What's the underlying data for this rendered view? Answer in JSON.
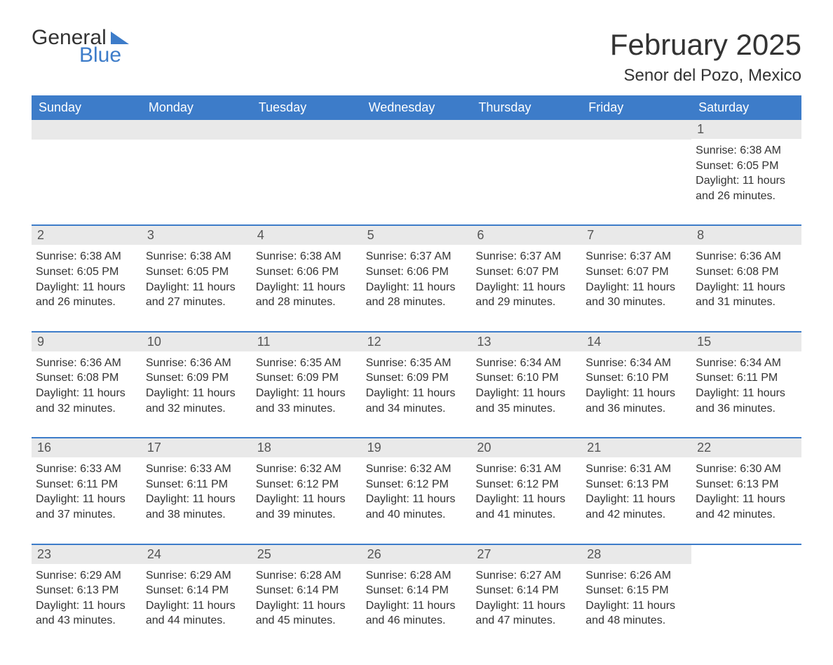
{
  "logo": {
    "general": "General",
    "blue": "Blue"
  },
  "title": "February 2025",
  "location": "Senor del Pozo, Mexico",
  "colors": {
    "header_bg": "#3d7cc9",
    "daybar_bg": "#e9e9e9",
    "text": "#333333",
    "background": "#ffffff"
  },
  "weekdays": [
    "Sunday",
    "Monday",
    "Tuesday",
    "Wednesday",
    "Thursday",
    "Friday",
    "Saturday"
  ],
  "weeks": [
    [
      null,
      null,
      null,
      null,
      null,
      null,
      {
        "d": "1",
        "sr": "Sunrise: 6:38 AM",
        "ss": "Sunset: 6:05 PM",
        "dl": "Daylight: 11 hours and 26 minutes."
      }
    ],
    [
      {
        "d": "2",
        "sr": "Sunrise: 6:38 AM",
        "ss": "Sunset: 6:05 PM",
        "dl": "Daylight: 11 hours and 26 minutes."
      },
      {
        "d": "3",
        "sr": "Sunrise: 6:38 AM",
        "ss": "Sunset: 6:05 PM",
        "dl": "Daylight: 11 hours and 27 minutes."
      },
      {
        "d": "4",
        "sr": "Sunrise: 6:38 AM",
        "ss": "Sunset: 6:06 PM",
        "dl": "Daylight: 11 hours and 28 minutes."
      },
      {
        "d": "5",
        "sr": "Sunrise: 6:37 AM",
        "ss": "Sunset: 6:06 PM",
        "dl": "Daylight: 11 hours and 28 minutes."
      },
      {
        "d": "6",
        "sr": "Sunrise: 6:37 AM",
        "ss": "Sunset: 6:07 PM",
        "dl": "Daylight: 11 hours and 29 minutes."
      },
      {
        "d": "7",
        "sr": "Sunrise: 6:37 AM",
        "ss": "Sunset: 6:07 PM",
        "dl": "Daylight: 11 hours and 30 minutes."
      },
      {
        "d": "8",
        "sr": "Sunrise: 6:36 AM",
        "ss": "Sunset: 6:08 PM",
        "dl": "Daylight: 11 hours and 31 minutes."
      }
    ],
    [
      {
        "d": "9",
        "sr": "Sunrise: 6:36 AM",
        "ss": "Sunset: 6:08 PM",
        "dl": "Daylight: 11 hours and 32 minutes."
      },
      {
        "d": "10",
        "sr": "Sunrise: 6:36 AM",
        "ss": "Sunset: 6:09 PM",
        "dl": "Daylight: 11 hours and 32 minutes."
      },
      {
        "d": "11",
        "sr": "Sunrise: 6:35 AM",
        "ss": "Sunset: 6:09 PM",
        "dl": "Daylight: 11 hours and 33 minutes."
      },
      {
        "d": "12",
        "sr": "Sunrise: 6:35 AM",
        "ss": "Sunset: 6:09 PM",
        "dl": "Daylight: 11 hours and 34 minutes."
      },
      {
        "d": "13",
        "sr": "Sunrise: 6:34 AM",
        "ss": "Sunset: 6:10 PM",
        "dl": "Daylight: 11 hours and 35 minutes."
      },
      {
        "d": "14",
        "sr": "Sunrise: 6:34 AM",
        "ss": "Sunset: 6:10 PM",
        "dl": "Daylight: 11 hours and 36 minutes."
      },
      {
        "d": "15",
        "sr": "Sunrise: 6:34 AM",
        "ss": "Sunset: 6:11 PM",
        "dl": "Daylight: 11 hours and 36 minutes."
      }
    ],
    [
      {
        "d": "16",
        "sr": "Sunrise: 6:33 AM",
        "ss": "Sunset: 6:11 PM",
        "dl": "Daylight: 11 hours and 37 minutes."
      },
      {
        "d": "17",
        "sr": "Sunrise: 6:33 AM",
        "ss": "Sunset: 6:11 PM",
        "dl": "Daylight: 11 hours and 38 minutes."
      },
      {
        "d": "18",
        "sr": "Sunrise: 6:32 AM",
        "ss": "Sunset: 6:12 PM",
        "dl": "Daylight: 11 hours and 39 minutes."
      },
      {
        "d": "19",
        "sr": "Sunrise: 6:32 AM",
        "ss": "Sunset: 6:12 PM",
        "dl": "Daylight: 11 hours and 40 minutes."
      },
      {
        "d": "20",
        "sr": "Sunrise: 6:31 AM",
        "ss": "Sunset: 6:12 PM",
        "dl": "Daylight: 11 hours and 41 minutes."
      },
      {
        "d": "21",
        "sr": "Sunrise: 6:31 AM",
        "ss": "Sunset: 6:13 PM",
        "dl": "Daylight: 11 hours and 42 minutes."
      },
      {
        "d": "22",
        "sr": "Sunrise: 6:30 AM",
        "ss": "Sunset: 6:13 PM",
        "dl": "Daylight: 11 hours and 42 minutes."
      }
    ],
    [
      {
        "d": "23",
        "sr": "Sunrise: 6:29 AM",
        "ss": "Sunset: 6:13 PM",
        "dl": "Daylight: 11 hours and 43 minutes."
      },
      {
        "d": "24",
        "sr": "Sunrise: 6:29 AM",
        "ss": "Sunset: 6:14 PM",
        "dl": "Daylight: 11 hours and 44 minutes."
      },
      {
        "d": "25",
        "sr": "Sunrise: 6:28 AM",
        "ss": "Sunset: 6:14 PM",
        "dl": "Daylight: 11 hours and 45 minutes."
      },
      {
        "d": "26",
        "sr": "Sunrise: 6:28 AM",
        "ss": "Sunset: 6:14 PM",
        "dl": "Daylight: 11 hours and 46 minutes."
      },
      {
        "d": "27",
        "sr": "Sunrise: 6:27 AM",
        "ss": "Sunset: 6:14 PM",
        "dl": "Daylight: 11 hours and 47 minutes."
      },
      {
        "d": "28",
        "sr": "Sunrise: 6:26 AM",
        "ss": "Sunset: 6:15 PM",
        "dl": "Daylight: 11 hours and 48 minutes."
      },
      null
    ]
  ]
}
